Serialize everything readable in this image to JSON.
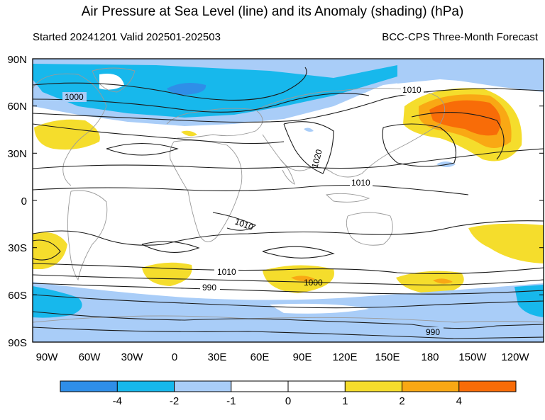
{
  "title": "Air Pressure at Sea Level (line) and its Anomaly (shading) (hPa)",
  "subtitle_left": "Started 20241201  Valid 202501-202503",
  "subtitle_right": "BCC-CPS Three-Month Forecast",
  "lat_labels": [
    "90N",
    "60N",
    "30N",
    "0",
    "30S",
    "60S",
    "90S"
  ],
  "lon_labels": [
    "90W",
    "60W",
    "30W",
    "0",
    "30E",
    "60E",
    "90E",
    "120E",
    "150E",
    "180",
    "150W",
    "120W"
  ],
  "contour_labels": [
    "1000",
    "1010",
    "1020",
    "1010",
    "1010",
    "1010",
    "990",
    "1000",
    "990"
  ],
  "colorbar": {
    "labels": [
      "-4",
      "-2",
      "-1",
      "0",
      "1",
      "2",
      "4"
    ],
    "colors": [
      "#2f8ee8",
      "#17b8ec",
      "#a9cdf8",
      "#ffffff",
      "#ffffff",
      "#f5dd2c",
      "#f9a814",
      "#f86c08"
    ]
  },
  "colors": {
    "strong_negative": "#2f8ee8",
    "negative": "#17b8ec",
    "weak_negative": "#a9cdf8",
    "weak_positive": "#f5dd2c",
    "positive": "#f9a814",
    "strong_positive": "#f86c08"
  }
}
